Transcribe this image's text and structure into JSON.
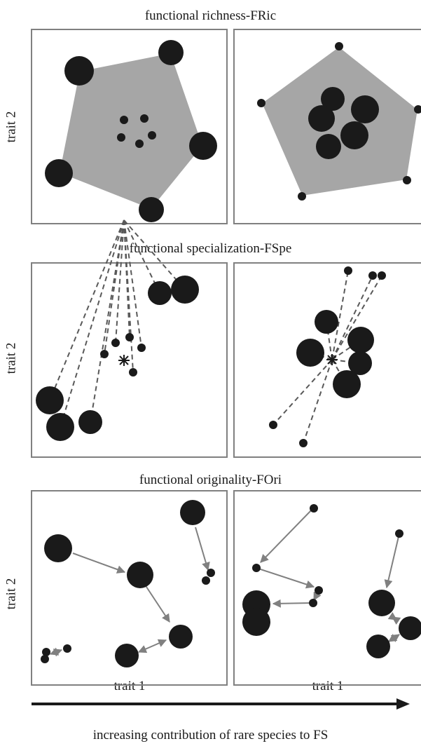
{
  "rows": [
    {
      "title": "functional richness-FRic",
      "ylabel": "trait 2"
    },
    {
      "title": "functional specialization-FSpe",
      "ylabel": "trait 2"
    },
    {
      "title": "functional originality-FOri",
      "ylabel": "trait 2"
    }
  ],
  "xlabels": [
    "trait 1",
    "trait 1"
  ],
  "caption": "increasing contribution of rare species to FS",
  "colors": {
    "dot": "#1a1a1a",
    "hull": "#a6a6a6",
    "frame": "#808080",
    "dash": "#595959",
    "arrow": "#808080"
  }
}
